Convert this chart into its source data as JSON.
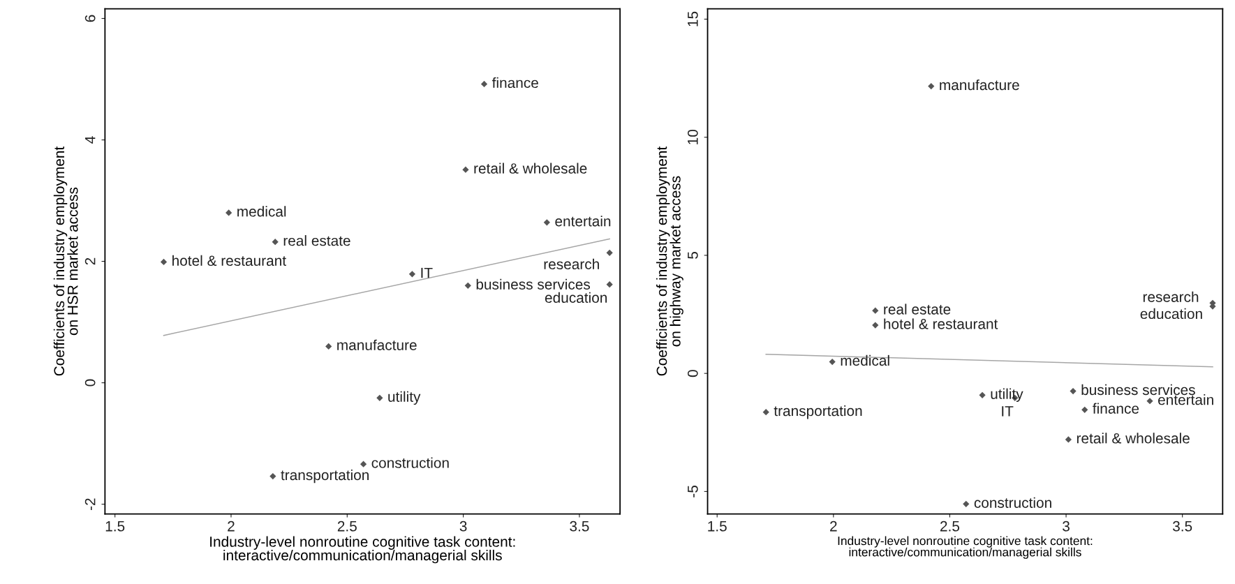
{
  "chart_data": [
    {
      "type": "scatter",
      "xlabel": "Industry-level nonroutine cognitive task content:\ninteractive/communication/managerial skills",
      "ylabel": "Coefficients of industry employment\non HSR market access",
      "xlim": [
        1.457,
        3.675
      ],
      "ylim": [
        -2.16,
        6.16
      ],
      "xticks": [
        1.5,
        2,
        2.5,
        3,
        3.5
      ],
      "yticks": [
        -2,
        0,
        2,
        4,
        6
      ],
      "grid": false,
      "legend": false,
      "marker": "diamond",
      "series": [
        {
          "color": "#555555",
          "x": [
            3.09,
            3.01,
            1.99,
            2.19,
            1.71,
            2.78,
            3.36,
            3.63,
            3.63,
            3.02,
            2.42,
            2.64,
            2.57,
            2.18
          ],
          "values": [
            4.92,
            3.51,
            2.8,
            2.32,
            1.99,
            1.79,
            2.64,
            2.14,
            1.62,
            1.6,
            0.6,
            -0.25,
            -1.34,
            -1.54
          ]
        },
        {
          "type": "line",
          "marker": "none",
          "color": "#a6a6a6",
          "x": [
            1.71,
            3.63
          ],
          "values": [
            0.78,
            2.37
          ]
        }
      ],
      "annotations": [
        {
          "text": "finance",
          "x": 3.09,
          "y": 4.92
        },
        {
          "text": "retail & wholesale",
          "x": 3.01,
          "y": 3.51
        },
        {
          "text": "medical",
          "x": 1.99,
          "y": 2.8
        },
        {
          "text": "real estate",
          "x": 2.19,
          "y": 2.32
        },
        {
          "text": "hotel & restaurant",
          "x": 1.71,
          "y": 1.99
        },
        {
          "text": "IT",
          "x": 2.78,
          "y": 1.79
        },
        {
          "text": "entertain",
          "x": 3.36,
          "y": 2.64
        },
        {
          "text": "research",
          "x": 3.63,
          "y": 2.14
        },
        {
          "text": "education",
          "x": 3.63,
          "y": 1.62
        },
        {
          "text": "business services",
          "x": 3.02,
          "y": 1.6
        },
        {
          "text": "manufacture",
          "x": 2.42,
          "y": 0.6
        },
        {
          "text": "utility",
          "x": 2.64,
          "y": -0.25
        },
        {
          "text": "construction",
          "x": 2.57,
          "y": -1.34
        },
        {
          "text": "transportation",
          "x": 2.18,
          "y": -1.54
        }
      ]
    },
    {
      "type": "scatter",
      "xlabel": "Industry-level nonroutine cognitive task content:\ninteractive/communication/managerial skills",
      "ylabel": "Coefficients of industry employment\non highway market access",
      "xlim": [
        1.459,
        3.673
      ],
      "ylim": [
        -5.95,
        15.44
      ],
      "xticks": [
        1.5,
        2,
        2.5,
        3,
        3.5
      ],
      "yticks": [
        -5,
        0,
        5,
        10,
        15
      ],
      "grid": false,
      "legend": false,
      "marker": "diamond",
      "series": [
        {
          "color": "#555555",
          "x": [
            2.42,
            2.18,
            2.18,
            1.995,
            1.71,
            2.64,
            2.78,
            3.03,
            3.08,
            3.36,
            3.01,
            2.57,
            3.63,
            3.63
          ],
          "values": [
            12.16,
            2.66,
            2.04,
            0.49,
            -1.64,
            -0.92,
            -1.04,
            -0.75,
            -1.54,
            -1.17,
            -2.8,
            -5.53,
            2.98,
            2.84
          ]
        },
        {
          "type": "line",
          "marker": "none",
          "color": "#a6a6a6",
          "x": [
            1.71,
            3.63
          ],
          "values": [
            0.81,
            0.28
          ]
        }
      ],
      "annotations": [
        {
          "text": "manufacture",
          "x": 2.42,
          "y": 12.16
        },
        {
          "text": "real estate",
          "x": 2.18,
          "y": 2.66
        },
        {
          "text": "hotel & restaurant",
          "x": 2.18,
          "y": 2.04
        },
        {
          "text": "medical",
          "x": 1.995,
          "y": 0.49
        },
        {
          "text": "transportation",
          "x": 1.71,
          "y": -1.64
        },
        {
          "text": "utility",
          "x": 2.64,
          "y": -0.92
        },
        {
          "text": "IT",
          "x": 2.78,
          "y": -1.04
        },
        {
          "text": "business services",
          "x": 3.03,
          "y": -0.75
        },
        {
          "text": "finance",
          "x": 3.08,
          "y": -1.54
        },
        {
          "text": "entertain",
          "x": 3.36,
          "y": -1.17
        },
        {
          "text": "retail & wholesale",
          "x": 3.01,
          "y": -2.8
        },
        {
          "text": "construction",
          "x": 2.57,
          "y": -5.53
        },
        {
          "text": "research",
          "x": 3.63,
          "y": 2.98
        },
        {
          "text": "education",
          "x": 3.63,
          "y": 2.84
        }
      ]
    }
  ]
}
